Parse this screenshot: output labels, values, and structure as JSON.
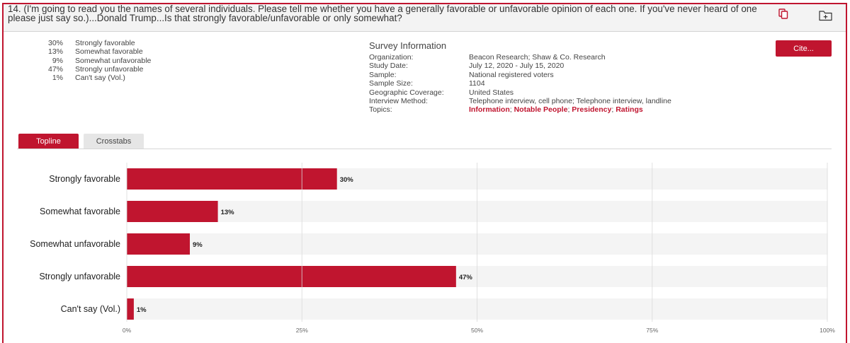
{
  "question": {
    "text": "14. (I'm going to read you the names of several individuals. Please tell me whether you have a generally favorable or unfavorable opinion of each one. If you've never heard of one please just say so.)...Donald Trump...Is that strongly favorable/unfavorable or only somewhat?"
  },
  "icons": {
    "copy": "copy-icon",
    "folder": "folder-add-icon"
  },
  "results": [
    {
      "pct": "30%",
      "label": "Strongly favorable"
    },
    {
      "pct": "13%",
      "label": "Somewhat favorable"
    },
    {
      "pct": "9%",
      "label": "Somewhat unfavorable"
    },
    {
      "pct": "47%",
      "label": "Strongly unfavorable"
    },
    {
      "pct": "1%",
      "label": "Can't say (Vol.)"
    }
  ],
  "survey": {
    "title": "Survey Information",
    "rows": [
      {
        "label": "Organization:",
        "value": "Beacon Research; Shaw & Co. Research"
      },
      {
        "label": "Study Date:",
        "value": "July 12, 2020 - July 15, 2020"
      },
      {
        "label": "Sample:",
        "value": "National registered voters"
      },
      {
        "label": "Sample Size:",
        "value": "1104"
      },
      {
        "label": "Geographic Coverage:",
        "value": "United States"
      },
      {
        "label": "Interview Method:",
        "value": "Telephone interview, cell phone; Telephone interview, landline"
      }
    ],
    "topics_label": "Topics:",
    "topics": [
      "Information",
      "Notable People",
      "Presidency",
      "Ratings"
    ]
  },
  "cite_button": "Cite...",
  "tabs": [
    {
      "label": "Topline"
    },
    {
      "label": "Crosstabs"
    }
  ],
  "colors": {
    "accent": "#c0152f",
    "track": "#f4f4f4"
  },
  "chart_data": {
    "type": "bar",
    "orientation": "horizontal",
    "categories": [
      "Strongly favorable",
      "Somewhat favorable",
      "Somewhat unfavorable",
      "Strongly unfavorable",
      "Can't say (Vol.)"
    ],
    "values": [
      30,
      13,
      9,
      47,
      1
    ],
    "value_labels": [
      "30%",
      "13%",
      "9%",
      "47%",
      "1%"
    ],
    "xlim": [
      0,
      100
    ],
    "xticks": [
      0,
      25,
      50,
      75,
      100
    ],
    "xtick_labels": [
      "0%",
      "25%",
      "50%",
      "75%",
      "100%"
    ],
    "grid": true
  }
}
